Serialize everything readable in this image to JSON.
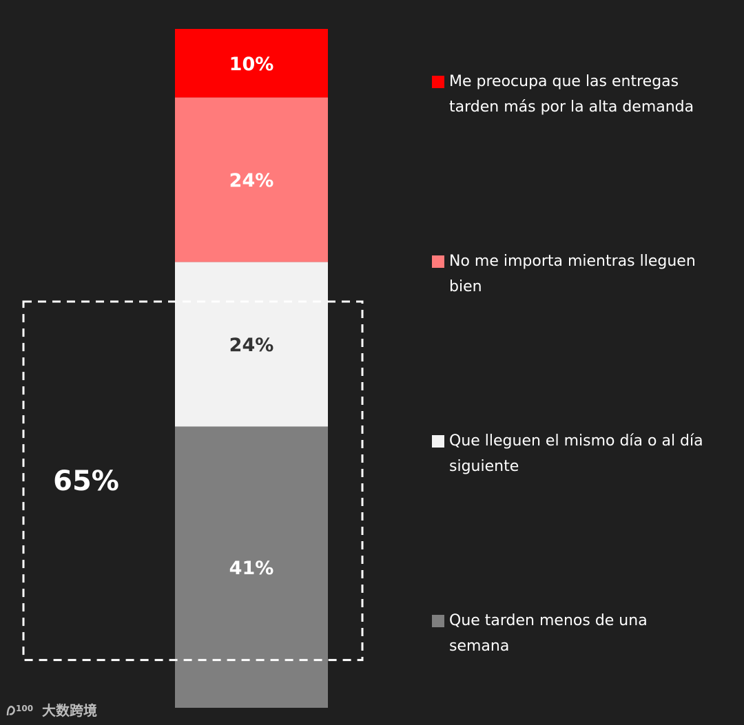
{
  "chart_data": {
    "type": "bar",
    "orientation": "stacked-vertical",
    "unit": "%",
    "segments": [
      {
        "label": "Me preocupa que las entregas tarden más por la alta demanda",
        "value": 10,
        "value_label": "10%",
        "color": "#ff0000",
        "label_color": "#ffffff"
      },
      {
        "label": "No me importa mientras lleguen bien",
        "value": 24,
        "value_label": "24%",
        "color": "#ff7b7b",
        "label_color": "#ffffff"
      },
      {
        "label": "Que lleguen el mismo día o al día siguiente",
        "value": 24,
        "value_label": "24%",
        "color": "#f2f2f2",
        "label_color": "#333333"
      },
      {
        "label": "Que tarden menos de una semana",
        "value": 41,
        "value_label": "41%",
        "color": "#7f7f7f",
        "label_color": "#ffffff"
      }
    ],
    "group": {
      "value_label": "65%",
      "covers_segments": [
        2,
        3
      ],
      "style": "dashed box"
    },
    "legend_position": "right"
  },
  "watermark": {
    "logo_text": "100",
    "text": "大数跨境"
  }
}
